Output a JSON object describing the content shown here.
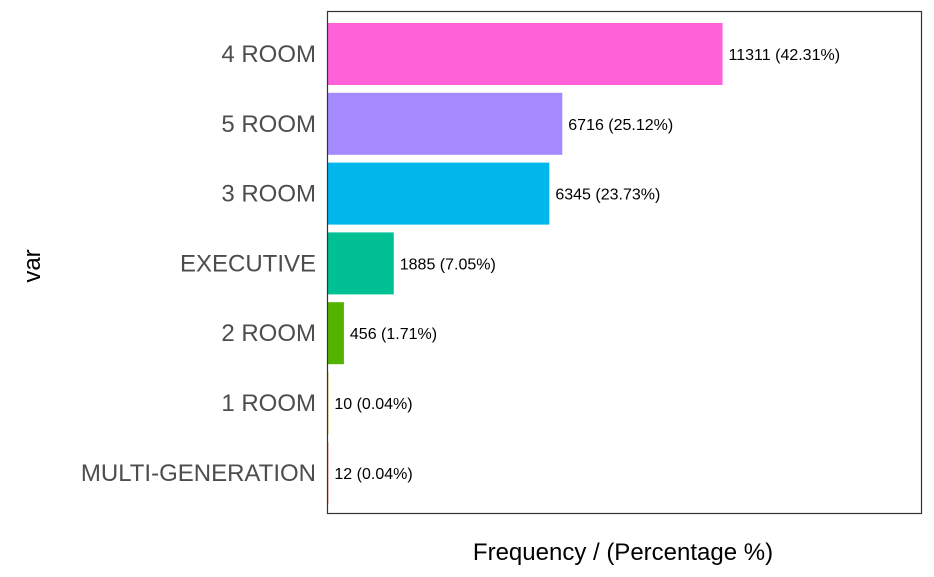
{
  "chart_data": {
    "type": "bar",
    "orientation": "horizontal",
    "xlabel": "Frequency / (Percentage %)",
    "ylabel": "var",
    "grid": false,
    "legend": "none",
    "categories": [
      "4 ROOM",
      "5 ROOM",
      "3 ROOM",
      "EXECUTIVE",
      "2 ROOM",
      "1 ROOM",
      "MULTI-GENERATION"
    ],
    "values": [
      11311,
      6716,
      6345,
      1885,
      456,
      10,
      12
    ],
    "labels": [
      "11311 (42.31%)",
      "6716 (25.12%)",
      "6345 (23.73%)",
      "1885 (7.05%)",
      "456 (1.71%)",
      "10 (0.04%)",
      "12 (0.04%)"
    ],
    "colors": [
      "#FF61D8",
      "#A58AFF",
      "#00B6EB",
      "#00C094",
      "#53B400",
      "#C49A00",
      "#F8766D"
    ],
    "xlim": [
      0,
      17000
    ]
  }
}
